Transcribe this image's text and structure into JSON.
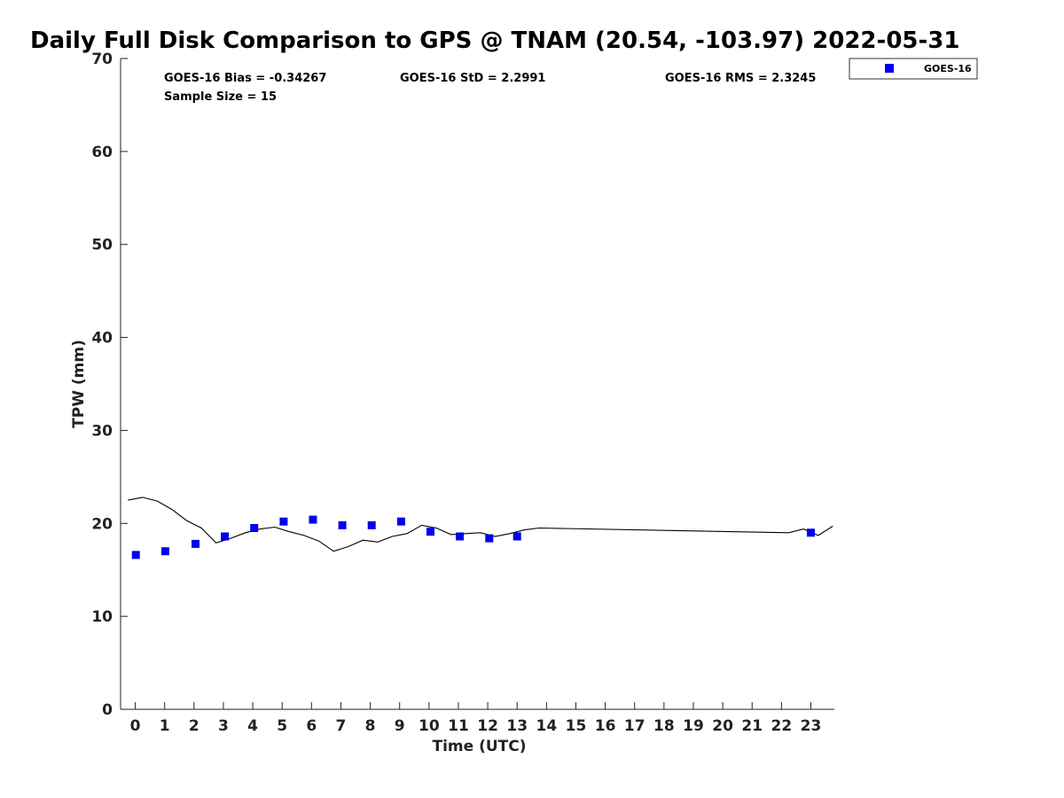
{
  "chart_data": {
    "type": "scatter",
    "title": "Daily Full Disk Comparison to GPS @ TNAM (20.54, -103.97) 2022-05-31",
    "xlabel": "Time (UTC)",
    "ylabel": "TPW (mm)",
    "xlim": [
      -0.5,
      23.8
    ],
    "ylim": [
      0,
      70
    ],
    "x_ticks": [
      0,
      1,
      2,
      3,
      4,
      5,
      6,
      7,
      8,
      9,
      10,
      11,
      12,
      13,
      14,
      15,
      16,
      17,
      18,
      19,
      20,
      21,
      22,
      23
    ],
    "y_ticks": [
      0,
      10,
      20,
      30,
      40,
      50,
      60,
      70
    ],
    "grid": false,
    "legend_position": "top-right (outside)",
    "stats": {
      "bias": "GOES-16 Bias = -0.34267",
      "std": "GOES-16 StD = 2.2991",
      "rms": "GOES-16 RMS = 2.3245",
      "sample": "Sample Size = 15"
    },
    "series": [
      {
        "name": "GOES-16",
        "style": "markers",
        "marker": "square",
        "color": "#0000ee",
        "points": [
          {
            "x": 0.02,
            "y": 16.6
          },
          {
            "x": 1.02,
            "y": 17.0
          },
          {
            "x": 2.05,
            "y": 17.8
          },
          {
            "x": 3.05,
            "y": 18.6
          },
          {
            "x": 4.05,
            "y": 19.5
          },
          {
            "x": 5.05,
            "y": 20.2
          },
          {
            "x": 6.05,
            "y": 20.4
          },
          {
            "x": 7.05,
            "y": 19.8
          },
          {
            "x": 8.05,
            "y": 19.8
          },
          {
            "x": 9.05,
            "y": 20.2
          },
          {
            "x": 10.05,
            "y": 19.1
          },
          {
            "x": 11.05,
            "y": 18.6
          },
          {
            "x": 12.05,
            "y": 18.4
          },
          {
            "x": 13.0,
            "y": 18.6
          },
          {
            "x": 23.0,
            "y": 19.0
          }
        ]
      },
      {
        "style": "line",
        "color": "#000000",
        "points": [
          {
            "x": -0.25,
            "y": 22.5
          },
          {
            "x": 0.25,
            "y": 22.8
          },
          {
            "x": 0.75,
            "y": 22.4
          },
          {
            "x": 1.25,
            "y": 21.5
          },
          {
            "x": 1.75,
            "y": 20.3
          },
          {
            "x": 2.25,
            "y": 19.5
          },
          {
            "x": 2.75,
            "y": 17.9
          },
          {
            "x": 3.25,
            "y": 18.4
          },
          {
            "x": 3.75,
            "y": 19.0
          },
          {
            "x": 4.25,
            "y": 19.4
          },
          {
            "x": 4.75,
            "y": 19.6
          },
          {
            "x": 5.25,
            "y": 19.1
          },
          {
            "x": 5.75,
            "y": 18.7
          },
          {
            "x": 6.25,
            "y": 18.1
          },
          {
            "x": 6.75,
            "y": 17.0
          },
          {
            "x": 7.25,
            "y": 17.5
          },
          {
            "x": 7.75,
            "y": 18.2
          },
          {
            "x": 8.25,
            "y": 18.0
          },
          {
            "x": 8.75,
            "y": 18.6
          },
          {
            "x": 9.25,
            "y": 18.9
          },
          {
            "x": 9.75,
            "y": 19.8
          },
          {
            "x": 10.25,
            "y": 19.5
          },
          {
            "x": 10.75,
            "y": 18.8
          },
          {
            "x": 11.25,
            "y": 18.9
          },
          {
            "x": 11.75,
            "y": 19.0
          },
          {
            "x": 12.25,
            "y": 18.6
          },
          {
            "x": 12.75,
            "y": 18.9
          },
          {
            "x": 13.25,
            "y": 19.3
          },
          {
            "x": 13.75,
            "y": 19.5
          },
          {
            "x": 22.25,
            "y": 19.0
          },
          {
            "x": 22.75,
            "y": 19.4
          },
          {
            "x": 23.25,
            "y": 18.7
          },
          {
            "x": 23.75,
            "y": 19.7
          }
        ]
      }
    ]
  }
}
